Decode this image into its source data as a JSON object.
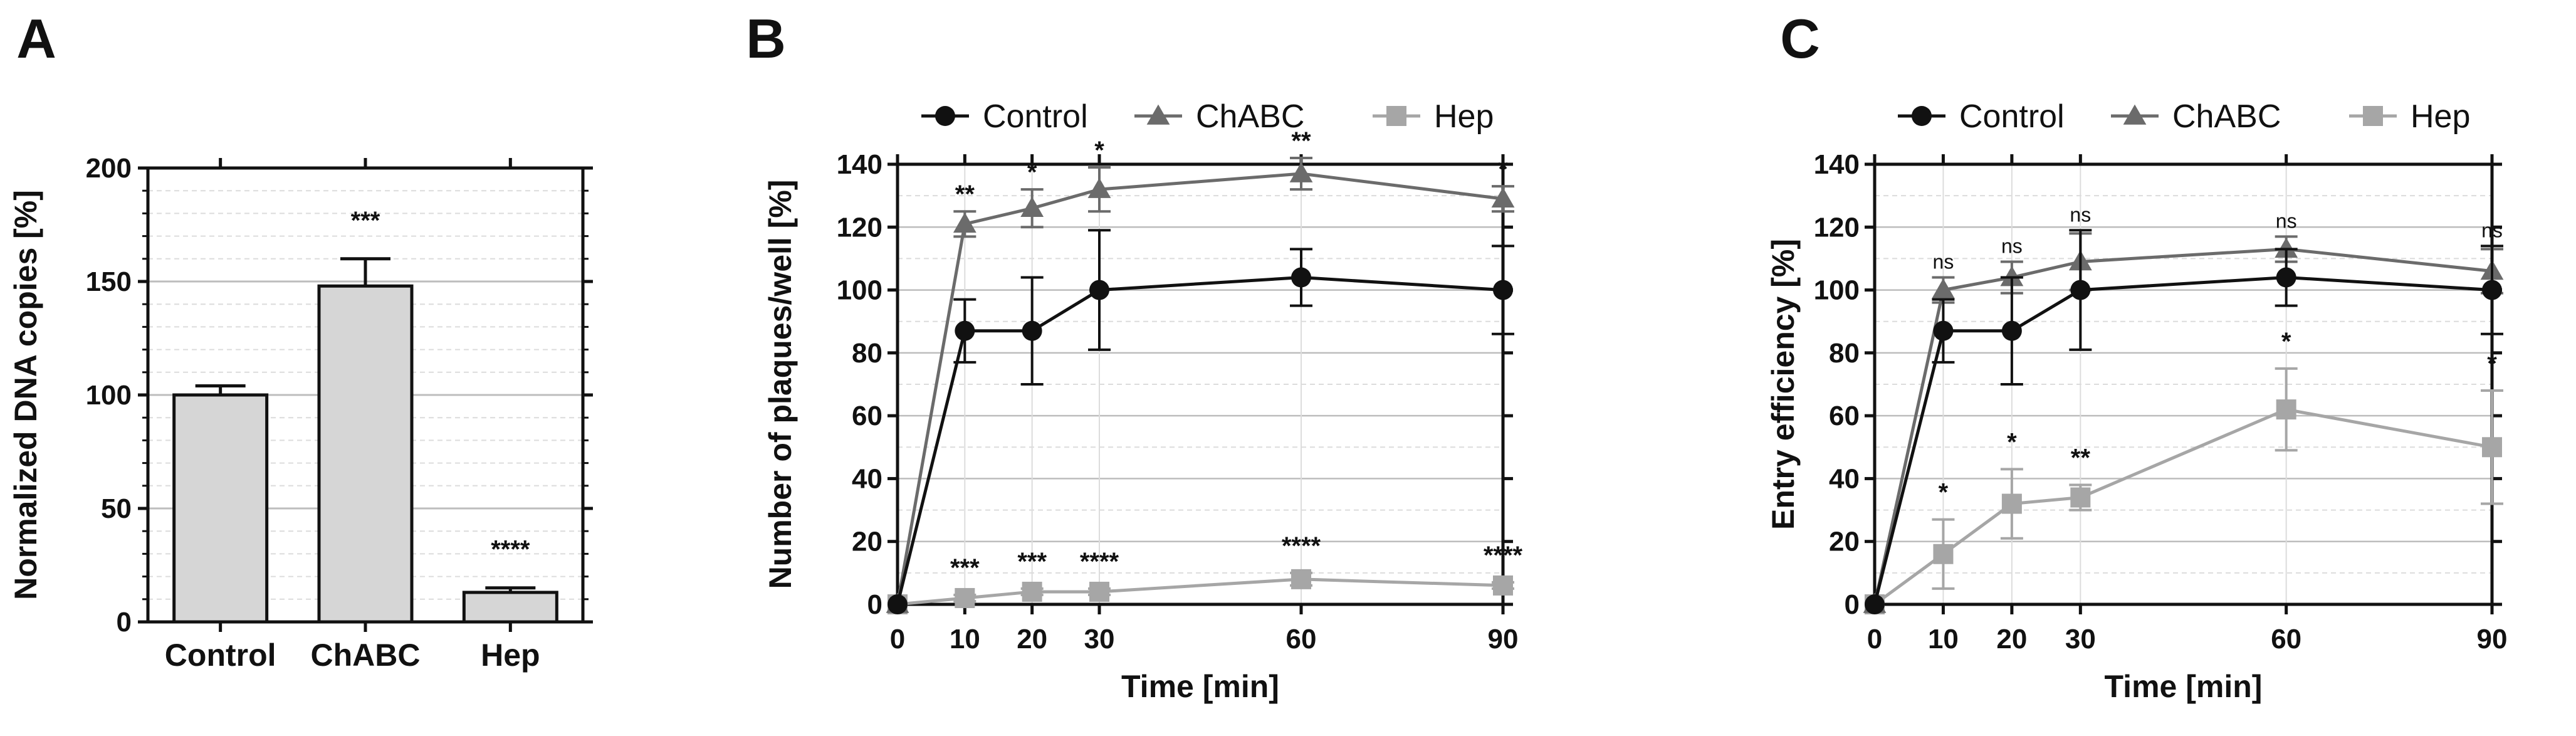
{
  "colors": {
    "control": "#111111",
    "chabc": "#6b6b6b",
    "hep": "#a6a6a6",
    "bar_fill": "#d6d6d6",
    "grid_major": "#bdbdbd",
    "grid_minor": "#dcdcdc"
  },
  "chart_data": [
    {
      "id": "A",
      "panel_label": "A",
      "type": "bar",
      "categories": [
        "Control",
        "ChABC",
        "Hep"
      ],
      "values": [
        100,
        148,
        13
      ],
      "errors": [
        4,
        12,
        2
      ],
      "significance": [
        "",
        "***",
        "****"
      ],
      "ylabel": "Normalized DNA copies [%]",
      "ylim": [
        0,
        200
      ],
      "yticks": [
        0,
        50,
        100,
        150,
        200
      ],
      "ytick_labels": [
        "0",
        "50",
        "100",
        "150",
        "200"
      ],
      "grid": true
    },
    {
      "id": "B",
      "panel_label": "B",
      "type": "line",
      "x": [
        0,
        10,
        20,
        30,
        60,
        90
      ],
      "xticks": [
        0,
        10,
        20,
        30,
        60,
        90
      ],
      "xtick_labels": [
        "0",
        "10",
        "20",
        "30",
        "60",
        "90"
      ],
      "xlim": [
        0,
        90
      ],
      "xlabel": "Time [min]",
      "ylabel": "Number of plaques/well [%]",
      "ylim": [
        0,
        140
      ],
      "yticks": [
        0,
        20,
        40,
        60,
        80,
        100,
        120,
        140
      ],
      "ytick_labels": [
        "0",
        "20",
        "40",
        "60",
        "80",
        "100",
        "120",
        "140"
      ],
      "legend": [
        "Control",
        "ChABC",
        "Hep"
      ],
      "legend_position": "top",
      "series": [
        {
          "name": "Control",
          "marker": "circle",
          "values": [
            0,
            87,
            87,
            100,
            104,
            100
          ],
          "errors": [
            0,
            10,
            17,
            19,
            9,
            14
          ]
        },
        {
          "name": "ChABC",
          "marker": "triangle",
          "values": [
            0,
            121,
            126,
            132,
            137,
            129
          ],
          "errors": [
            0,
            4,
            6,
            7,
            5,
            4
          ]
        },
        {
          "name": "Hep",
          "marker": "square",
          "values": [
            0,
            2,
            4,
            4,
            8,
            6
          ],
          "errors": [
            0,
            1,
            1,
            1,
            2,
            1
          ]
        }
      ],
      "sig_upper": [
        "",
        "**",
        "*",
        "*",
        "**",
        "*"
      ],
      "sig_lower": [
        "",
        "***",
        "***",
        "****",
        "****",
        "****"
      ]
    },
    {
      "id": "C",
      "panel_label": "C",
      "type": "line",
      "x": [
        0,
        10,
        20,
        30,
        60,
        90
      ],
      "xticks": [
        0,
        10,
        20,
        30,
        60,
        90
      ],
      "xtick_labels": [
        "0",
        "10",
        "20",
        "30",
        "60",
        "90"
      ],
      "xlim": [
        0,
        90
      ],
      "xlabel": "Time [min]",
      "ylabel": "Entry efficiency [%]",
      "ylim": [
        0,
        140
      ],
      "yticks": [
        0,
        20,
        40,
        60,
        80,
        100,
        120,
        140
      ],
      "ytick_labels": [
        "0",
        "20",
        "40",
        "60",
        "80",
        "100",
        "120",
        "140"
      ],
      "legend": [
        "Control",
        "ChABC",
        "Hep"
      ],
      "legend_position": "top",
      "series": [
        {
          "name": "Control",
          "marker": "circle",
          "values": [
            0,
            87,
            87,
            100,
            104,
            100
          ],
          "errors": [
            0,
            10,
            17,
            19,
            9,
            14
          ]
        },
        {
          "name": "ChABC",
          "marker": "triangle",
          "values": [
            0,
            100,
            104,
            109,
            113,
            106
          ],
          "errors": [
            0,
            4,
            5,
            9,
            4,
            7
          ]
        },
        {
          "name": "Hep",
          "marker": "square",
          "values": [
            0,
            16,
            32,
            34,
            62,
            50
          ],
          "errors": [
            0,
            11,
            11,
            4,
            13,
            18
          ]
        }
      ],
      "sig_upper": [
        "",
        "ns",
        "ns",
        "ns",
        "ns",
        "ns"
      ],
      "sig_lower": [
        "",
        "*",
        "*",
        "**",
        "*",
        "*"
      ]
    }
  ]
}
